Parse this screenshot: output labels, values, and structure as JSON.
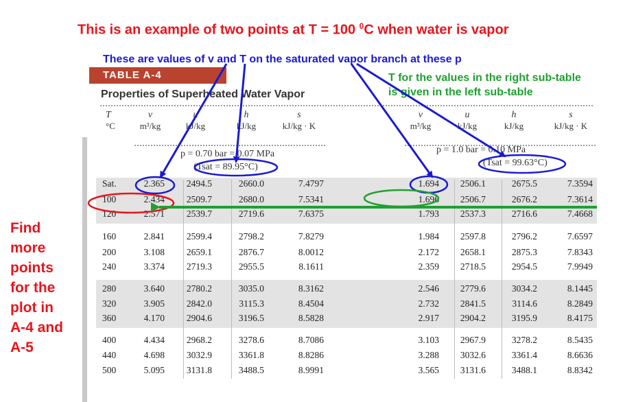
{
  "annotations": {
    "title_main": "This is an example of two points at T = 100 ",
    "title_sup": "0",
    "title_end": "C when water is vapor",
    "blue_note": "These are values of v and T on the saturated vapor branch at these p",
    "green_note_line1": "T for the values in the right sub-table",
    "green_note_line2": "is given in the left sub-table",
    "side_note": [
      "Find",
      "more",
      "points",
      "for the",
      "plot in",
      "A-4 and",
      "A-5"
    ]
  },
  "table": {
    "badge": "TABLE A-4",
    "title": "Properties of Superheated Water Vapor",
    "headers": {
      "T": "T",
      "T_unit": "°C",
      "v": "v",
      "v_unit": "m³/kg",
      "u": "u",
      "u_unit": "kJ/kg",
      "h": "h",
      "h_unit": "kJ/kg",
      "s": "s",
      "s_unit": "kJ/kg · K"
    },
    "left_pressure": "p = 0.70 bar = 0.07 MPa",
    "left_tsat": "(Tsat = 89.95°C)",
    "right_pressure": "p = 1.0 bar = 0.10 MPa",
    "right_tsat": "(Tsat = 99.63°C)",
    "rows": [
      {
        "T": "Sat.",
        "v1": "2.365",
        "u1": "2494.5",
        "h1": "2660.0",
        "s1": "7.4797",
        "v2": "1.694",
        "u2": "2506.1",
        "h2": "2675.5",
        "s2": "7.3594"
      },
      {
        "T": "100",
        "v1": "2.434",
        "u1": "2509.7",
        "h1": "2680.0",
        "s1": "7.5341",
        "v2": "1.696",
        "u2": "2506.7",
        "h2": "2676.2",
        "s2": "7.3614"
      },
      {
        "T": "120",
        "v1": "2.571",
        "u1": "2539.7",
        "h1": "2719.6",
        "s1": "7.6375",
        "v2": "1.793",
        "u2": "2537.3",
        "h2": "2716.6",
        "s2": "7.4668"
      },
      {
        "T": "160",
        "v1": "2.841",
        "u1": "2599.4",
        "h1": "2798.2",
        "s1": "7.8279",
        "v2": "1.984",
        "u2": "2597.8",
        "h2": "2796.2",
        "s2": "7.6597"
      },
      {
        "T": "200",
        "v1": "3.108",
        "u1": "2659.1",
        "h1": "2876.7",
        "s1": "8.0012",
        "v2": "2.172",
        "u2": "2658.1",
        "h2": "2875.3",
        "s2": "7.8343"
      },
      {
        "T": "240",
        "v1": "3.374",
        "u1": "2719.3",
        "h1": "2955.5",
        "s1": "8.1611",
        "v2": "2.359",
        "u2": "2718.5",
        "h2": "2954.5",
        "s2": "7.9949"
      },
      {
        "T": "280",
        "v1": "3.640",
        "u1": "2780.2",
        "h1": "3035.0",
        "s1": "8.3162",
        "v2": "2.546",
        "u2": "2779.6",
        "h2": "3034.2",
        "s2": "8.1445"
      },
      {
        "T": "320",
        "v1": "3.905",
        "u1": "2842.0",
        "h1": "3115.3",
        "s1": "8.4504",
        "v2": "2.732",
        "u2": "2841.5",
        "h2": "3114.6",
        "s2": "8.2849"
      },
      {
        "T": "360",
        "v1": "4.170",
        "u1": "2904.6",
        "h1": "3196.5",
        "s1": "8.5828",
        "v2": "2.917",
        "u2": "2904.2",
        "h2": "3195.9",
        "s2": "8.4175"
      },
      {
        "T": "400",
        "v1": "4.434",
        "u1": "2968.2",
        "h1": "3278.6",
        "s1": "8.7086",
        "v2": "3.103",
        "u2": "2967.9",
        "h2": "3278.2",
        "s2": "8.5435"
      },
      {
        "T": "440",
        "v1": "4.698",
        "u1": "3032.9",
        "h1": "3361.8",
        "s1": "8.8286",
        "v2": "3.288",
        "u2": "3032.6",
        "h2": "3361.4",
        "s2": "8.6636"
      },
      {
        "T": "500",
        "v1": "5.095",
        "u1": "3131.8",
        "h1": "3488.5",
        "s1": "8.9991",
        "v2": "3.565",
        "u2": "3131.6",
        "h2": "3488.1",
        "s2": "8.8342"
      }
    ]
  },
  "colors": {
    "red": "#e8141c",
    "blue": "#1a1ad4",
    "green": "#20a030",
    "badge": "#b9432f"
  }
}
